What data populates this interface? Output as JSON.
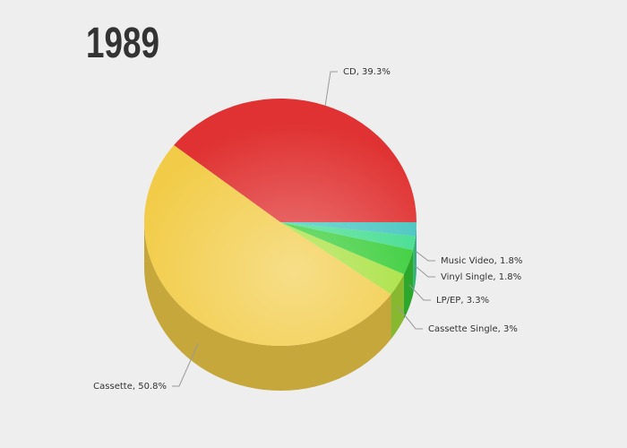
{
  "chart_data": {
    "type": "pie3d",
    "title": "1989",
    "categories": [
      "CD",
      "Cassette",
      "Cassette Single",
      "LP/EP",
      "Vinyl Single",
      "Music Video"
    ],
    "values": [
      39.3,
      50.8,
      3,
      3.3,
      1.8,
      1.8
    ],
    "value_labels": [
      "39.3%",
      "50.8%",
      "3%",
      "3.3%",
      "1.8%",
      "1.8%"
    ],
    "colors": [
      "#e03232",
      "#f2cc48",
      "#a6e03a",
      "#34cc34",
      "#3edc8c",
      "#44c4c0"
    ]
  }
}
